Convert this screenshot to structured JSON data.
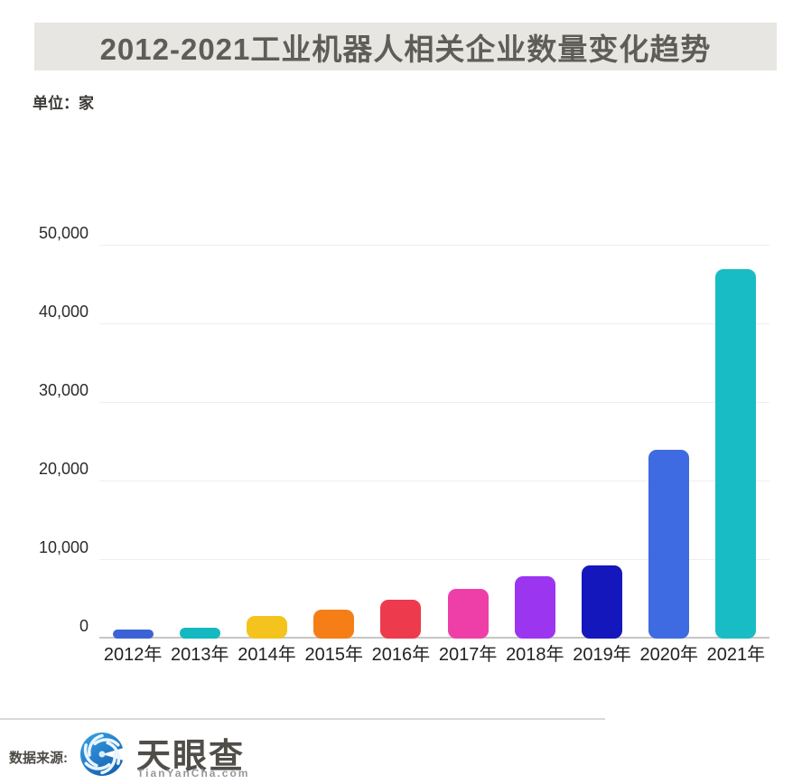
{
  "title": "2012-2021工业机器人相关企业数量变化趋势",
  "unit_label": "单位：家",
  "source": {
    "label": "数据来源:",
    "brand": "天眼查",
    "brand_sub": "TianYanCha.com"
  },
  "colors": {
    "banner_bg": "#e8e6e2",
    "title_text": "#5f5d58",
    "grid": "#efeeeb",
    "axis_line": "#c7c6c3",
    "divider": "#d9d8d5",
    "logo_blue_light": "#36a3e4",
    "logo_blue_dark": "#1762b2"
  },
  "chart_data": {
    "type": "bar",
    "title": "2012-2021工业机器人相关企业数量变化趋势",
    "xlabel": "",
    "ylabel": "单位：家",
    "categories": [
      "2012年",
      "2013年",
      "2014年",
      "2015年",
      "2016年",
      "2017年",
      "2018年",
      "2019年",
      "2020年",
      "2021年"
    ],
    "values": [
      1200,
      1400,
      2900,
      3700,
      4900,
      6300,
      7900,
      9300,
      24000,
      47000
    ],
    "bar_colors": [
      "#3c63d6",
      "#13b8c0",
      "#f5c31d",
      "#f57e16",
      "#ee3a4d",
      "#ee3fa8",
      "#9b35f0",
      "#1417bb",
      "#3f6be2",
      "#18bcc4"
    ],
    "ylim": [
      0,
      50000
    ],
    "ytick_interval": 10000,
    "ytick_labels": [
      "0",
      "10,000",
      "20,000",
      "30,000",
      "40,000",
      "50,000"
    ],
    "grid": true,
    "legend": false
  }
}
